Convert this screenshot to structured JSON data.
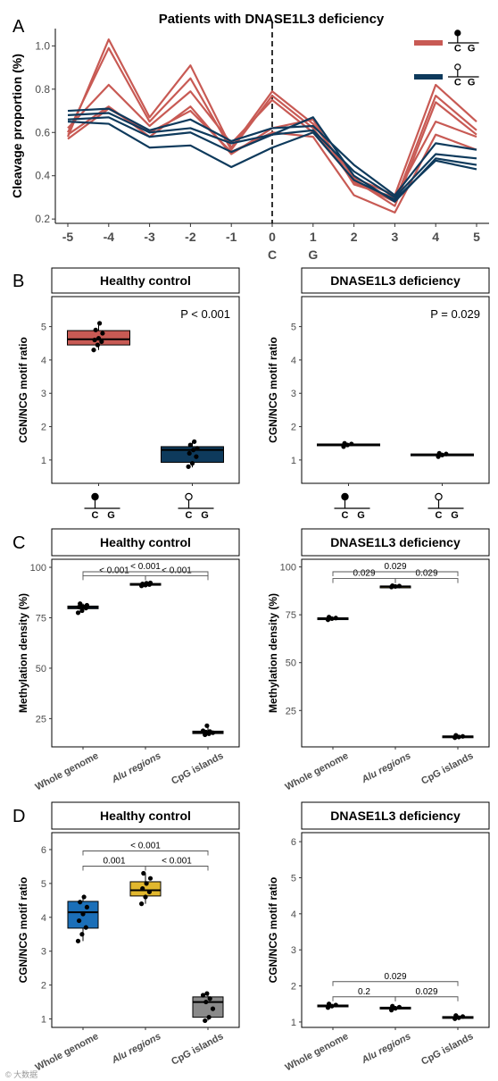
{
  "panel_letters": {
    "A": "A",
    "B": "B",
    "C": "C",
    "D": "D"
  },
  "watermark": "© 大数据",
  "chart_data": [
    {
      "id": "A",
      "type": "line",
      "title": "Patients with DNASE1L3 deficiency",
      "ylabel": "Cleavage proportion (%)",
      "xlabel": "",
      "x": [
        -5,
        -4,
        -3,
        -2,
        -1,
        0,
        1,
        2,
        3,
        4,
        5
      ],
      "x_sublabels": {
        "0": "C",
        "1": "G"
      },
      "ylim": [
        0.18,
        1.08
      ],
      "yticks": [
        0.2,
        0.4,
        0.6,
        0.8,
        1.0
      ],
      "ytick_labels": [
        "0.2",
        "0.4",
        "0.6",
        "0.8",
        "1.0"
      ],
      "vline_at": 0,
      "legend_position": "top-right",
      "legend": [
        {
          "motif_letters": [
            "C",
            "G"
          ],
          "methylated": true,
          "color": "#C85A54"
        },
        {
          "motif_letters": [
            "C",
            "G"
          ],
          "methylated": false,
          "color": "#0E3A5C"
        }
      ],
      "series": [
        {
          "group": "methylated",
          "color": "#C85A54",
          "values": [
            0.58,
            1.03,
            0.67,
            0.91,
            0.53,
            0.79,
            0.64,
            0.39,
            0.31,
            0.82,
            0.65
          ]
        },
        {
          "group": "methylated",
          "color": "#C85A54",
          "values": [
            0.6,
            0.99,
            0.65,
            0.85,
            0.52,
            0.77,
            0.62,
            0.37,
            0.28,
            0.77,
            0.61
          ]
        },
        {
          "group": "methylated",
          "color": "#C85A54",
          "values": [
            0.62,
            0.82,
            0.63,
            0.79,
            0.55,
            0.75,
            0.6,
            0.38,
            0.26,
            0.74,
            0.59
          ]
        },
        {
          "group": "methylated",
          "color": "#C85A54",
          "values": [
            0.59,
            0.72,
            0.58,
            0.72,
            0.5,
            0.62,
            0.66,
            0.36,
            0.3,
            0.65,
            0.58
          ]
        },
        {
          "group": "methylated",
          "color": "#C85A54",
          "values": [
            0.57,
            0.71,
            0.6,
            0.7,
            0.51,
            0.6,
            0.58,
            0.31,
            0.23,
            0.59,
            0.52
          ]
        },
        {
          "group": "unmethylated",
          "color": "#0E3A5C",
          "values": [
            0.7,
            0.71,
            0.61,
            0.66,
            0.56,
            0.62,
            0.63,
            0.45,
            0.31,
            0.55,
            0.52
          ]
        },
        {
          "group": "unmethylated",
          "color": "#0E3A5C",
          "values": [
            0.68,
            0.69,
            0.6,
            0.62,
            0.55,
            0.59,
            0.61,
            0.42,
            0.3,
            0.5,
            0.48
          ]
        },
        {
          "group": "unmethylated",
          "color": "#0E3A5C",
          "values": [
            0.66,
            0.67,
            0.58,
            0.6,
            0.51,
            0.59,
            0.67,
            0.4,
            0.28,
            0.48,
            0.45
          ]
        },
        {
          "group": "unmethylated",
          "color": "#0E3A5C",
          "values": [
            0.65,
            0.64,
            0.53,
            0.54,
            0.44,
            0.53,
            0.6,
            0.38,
            0.29,
            0.47,
            0.43
          ]
        }
      ]
    },
    {
      "id": "B-left",
      "type": "box",
      "strip_title": "Healthy control",
      "ylabel": "CGN/NCG motif ratio",
      "ylim": [
        0.3,
        5.9
      ],
      "yticks": [
        1,
        2,
        3,
        4,
        5
      ],
      "ytick_labels": [
        "1",
        "2",
        "3",
        "4",
        "5"
      ],
      "category_kind": "motif",
      "categories": [
        {
          "motif_letters": [
            "C",
            "G"
          ],
          "methylated": true
        },
        {
          "motif_letters": [
            "C",
            "G"
          ],
          "methylated": false
        }
      ],
      "annotation": "P < 0.001",
      "boxes": [
        {
          "color": "#C85A54",
          "q1": 4.45,
          "median": 4.62,
          "q3": 4.88,
          "whisker_low": 4.3,
          "whisker_high": 5.1,
          "points": [
            4.3,
            4.45,
            4.55,
            4.6,
            4.65,
            4.8,
            4.9,
            5.1
          ]
        },
        {
          "color": "#0E3A5C",
          "q1": 0.93,
          "median": 1.3,
          "q3": 1.4,
          "whisker_low": 0.78,
          "whisker_high": 1.55,
          "points": [
            0.8,
            0.9,
            1.1,
            1.2,
            1.3,
            1.35,
            1.45,
            1.55
          ]
        }
      ]
    },
    {
      "id": "B-right",
      "type": "box",
      "strip_title": "DNASE1L3 deficiency",
      "ylabel": "CGN/NCG motif ratio",
      "ylim": [
        0.3,
        5.9
      ],
      "yticks": [
        1,
        2,
        3,
        4,
        5
      ],
      "ytick_labels": [
        "1",
        "2",
        "3",
        "4",
        "5"
      ],
      "category_kind": "motif",
      "categories": [
        {
          "motif_letters": [
            "C",
            "G"
          ],
          "methylated": true
        },
        {
          "motif_letters": [
            "C",
            "G"
          ],
          "methylated": false
        }
      ],
      "annotation": "P = 0.029",
      "boxes": [
        {
          "color": "#C85A54",
          "q1": 1.43,
          "median": 1.46,
          "q3": 1.48,
          "whisker_low": 1.4,
          "whisker_high": 1.5,
          "points": [
            1.4,
            1.45,
            1.48,
            1.5
          ]
        },
        {
          "color": "#0E3A5C",
          "q1": 1.14,
          "median": 1.16,
          "q3": 1.18,
          "whisker_low": 1.1,
          "whisker_high": 1.2,
          "points": [
            1.1,
            1.15,
            1.18,
            1.2
          ]
        }
      ]
    },
    {
      "id": "C-left",
      "type": "box",
      "strip_title": "Healthy control",
      "ylabel": "Methylation density (%)",
      "ylim": [
        11,
        104
      ],
      "yticks": [
        25,
        50,
        75,
        100
      ],
      "ytick_labels": [
        "25",
        "50",
        "75",
        "100"
      ],
      "category_kind": "text",
      "categories": [
        "Whole genome",
        "Alu regions",
        "CpG islands"
      ],
      "italic_categories": [
        false,
        true,
        false
      ],
      "brackets": [
        {
          "from": 0,
          "to": 1,
          "level": 0,
          "label": "< 0.001"
        },
        {
          "from": 1,
          "to": 2,
          "level": 0,
          "label": "< 0.001"
        },
        {
          "from": 0,
          "to": 2,
          "level": 1,
          "label": "< 0.001"
        }
      ],
      "boxes": [
        {
          "color": "#1B6FB8",
          "q1": 79.5,
          "median": 80.2,
          "q3": 80.8,
          "whisker_low": 77.5,
          "whisker_high": 82,
          "points": [
            77.5,
            78.5,
            79.8,
            80.3,
            80.6,
            81.2,
            82
          ]
        },
        {
          "color": "#E1B72E",
          "q1": 91.2,
          "median": 91.6,
          "q3": 92,
          "whisker_low": 90.8,
          "whisker_high": 92.3,
          "points": [
            90.8,
            91.2,
            91.5,
            91.8,
            92.1,
            92.3
          ]
        },
        {
          "color": "#8A8A8A",
          "q1": 17.6,
          "median": 18.2,
          "q3": 18.8,
          "whisker_low": 17,
          "whisker_high": 21.5,
          "points": [
            17,
            17.5,
            18,
            18.3,
            18.6,
            19,
            21.5
          ]
        }
      ]
    },
    {
      "id": "C-right",
      "type": "box",
      "strip_title": "DNASE1L3 deficiency",
      "ylabel": "Methylation density (%)",
      "ylim": [
        6,
        104
      ],
      "yticks": [
        25,
        50,
        75,
        100
      ],
      "ytick_labels": [
        "25",
        "50",
        "75",
        "100"
      ],
      "category_kind": "text",
      "categories": [
        "Whole genome",
        "Alu regions",
        "CpG islands"
      ],
      "italic_categories": [
        false,
        true,
        false
      ],
      "brackets": [
        {
          "from": 0,
          "to": 1,
          "level": 0,
          "label": "0.029"
        },
        {
          "from": 1,
          "to": 2,
          "level": 0,
          "label": "0.029"
        },
        {
          "from": 0,
          "to": 2,
          "level": 1,
          "label": "0.029"
        }
      ],
      "boxes": [
        {
          "color": "#1B6FB8",
          "q1": 72.8,
          "median": 73.1,
          "q3": 73.4,
          "whisker_low": 72.4,
          "whisker_high": 73.8,
          "points": [
            72.4,
            73,
            73.3,
            73.8
          ]
        },
        {
          "color": "#E1B72E",
          "q1": 89.6,
          "median": 89.8,
          "q3": 90,
          "whisker_low": 89.5,
          "whisker_high": 90.2,
          "points": [
            89.5,
            89.8,
            90,
            90.2
          ]
        },
        {
          "color": "#8A8A8A",
          "q1": 11.1,
          "median": 11.4,
          "q3": 11.7,
          "whisker_low": 10.8,
          "whisker_high": 12,
          "points": [
            10.8,
            11.2,
            11.5,
            12
          ]
        }
      ]
    },
    {
      "id": "D-left",
      "type": "box",
      "strip_title": "Healthy control",
      "ylabel": "CGN/NCG motif ratio",
      "ylim": [
        0.75,
        6.5
      ],
      "yticks": [
        1,
        2,
        3,
        4,
        5,
        6
      ],
      "ytick_labels": [
        "1",
        "2",
        "3",
        "4",
        "5",
        "6"
      ],
      "category_kind": "text",
      "categories": [
        "Whole genome",
        "Alu regions",
        "CpG islands"
      ],
      "italic_categories": [
        false,
        true,
        false
      ],
      "brackets": [
        {
          "from": 0,
          "to": 1,
          "level": 0,
          "label": "0.001"
        },
        {
          "from": 1,
          "to": 2,
          "level": 0,
          "label": "< 0.001"
        },
        {
          "from": 0,
          "to": 2,
          "level": 1,
          "label": "< 0.001"
        }
      ],
      "boxes": [
        {
          "color": "#1B6FB8",
          "q1": 3.68,
          "median": 4.15,
          "q3": 4.47,
          "whisker_low": 3.3,
          "whisker_high": 4.6,
          "points": [
            3.3,
            3.5,
            3.7,
            3.9,
            4.1,
            4.3,
            4.45,
            4.6
          ]
        },
        {
          "color": "#E1B72E",
          "q1": 4.63,
          "median": 4.8,
          "q3": 5.05,
          "whisker_low": 4.4,
          "whisker_high": 5.3,
          "points": [
            4.4,
            4.6,
            4.75,
            4.85,
            5.0,
            5.15,
            5.3
          ]
        },
        {
          "color": "#8A8A8A",
          "q1": 1.05,
          "median": 1.5,
          "q3": 1.65,
          "whisker_low": 0.95,
          "whisker_high": 1.75,
          "points": [
            0.95,
            1.05,
            1.3,
            1.5,
            1.6,
            1.7,
            1.75
          ]
        }
      ]
    },
    {
      "id": "D-right",
      "type": "box",
      "strip_title": "DNASE1L3 deficiency",
      "ylabel": "CGN/NCG motif ratio",
      "ylim": [
        0.85,
        6.25
      ],
      "yticks": [
        1,
        2,
        3,
        4,
        5,
        6
      ],
      "ytick_labels": [
        "1",
        "2",
        "3",
        "4",
        "5",
        "6"
      ],
      "category_kind": "text",
      "categories": [
        "Whole genome",
        "Alu regions",
        "CpG islands"
      ],
      "italic_categories": [
        false,
        true,
        false
      ],
      "brackets": [
        {
          "from": 0,
          "to": 1,
          "level": 0,
          "label": "0.2"
        },
        {
          "from": 1,
          "to": 2,
          "level": 0,
          "label": "0.029"
        },
        {
          "from": 0,
          "to": 2,
          "level": 1,
          "label": "0.029"
        }
      ],
      "boxes": [
        {
          "color": "#1B6FB8",
          "q1": 1.42,
          "median": 1.45,
          "q3": 1.47,
          "whisker_low": 1.4,
          "whisker_high": 1.5,
          "points": [
            1.4,
            1.44,
            1.47,
            1.5
          ]
        },
        {
          "color": "#E1B72E",
          "q1": 1.36,
          "median": 1.39,
          "q3": 1.41,
          "whisker_low": 1.33,
          "whisker_high": 1.44,
          "points": [
            1.33,
            1.38,
            1.41,
            1.44
          ]
        },
        {
          "color": "#8A8A8A",
          "q1": 1.11,
          "median": 1.13,
          "q3": 1.15,
          "whisker_low": 1.09,
          "whisker_high": 1.18,
          "points": [
            1.09,
            1.12,
            1.15,
            1.18
          ]
        }
      ]
    }
  ]
}
